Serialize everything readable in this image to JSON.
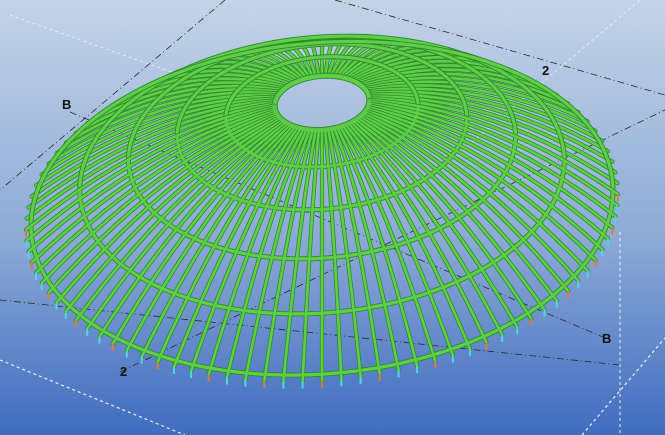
{
  "viewport": {
    "background_top": "#c3d4e8",
    "background_bottom": "#3f6cc0"
  },
  "model": {
    "type": "radial-dome-frame",
    "member_color": "#5fce49",
    "member_edge_color": "#2f8a2a",
    "support_colors": [
      "#4fd6e6",
      "#e2783a"
    ],
    "radial_member_count": 96,
    "ring_count": 5
  },
  "grid_lines": {
    "line_color": "#2a2a2a",
    "guide_color": "#f2f2f2",
    "labels": {
      "top_b": "B",
      "top_2": "2",
      "bottom_2": "2",
      "bottom_b": "B"
    }
  }
}
